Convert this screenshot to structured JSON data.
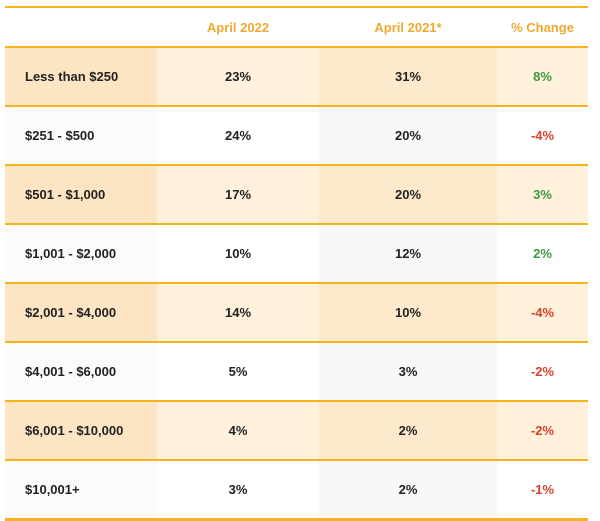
{
  "headers": [
    "",
    "April 2022",
    "April 2021*",
    "% Change"
  ],
  "rows": [
    {
      "range": "Less than $250",
      "apr2022": "23%",
      "apr2021": "31%",
      "change": "8%"
    },
    {
      "range": "$251 - $500",
      "apr2022": "24%",
      "apr2021": "20%",
      "change": "-4%"
    },
    {
      "range": "$501 - $1,000",
      "apr2022": "17%",
      "apr2021": "20%",
      "change": "3%"
    },
    {
      "range": "$1,001 - $2,000",
      "apr2022": "10%",
      "apr2021": "12%",
      "change": "2%"
    },
    {
      "range": "$2,001 - $4,000",
      "apr2022": "14%",
      "apr2021": "10%",
      "change": "-4%"
    },
    {
      "range": "$4,001 - $6,000",
      "apr2022": "5%",
      "apr2021": "3%",
      "change": "-2%"
    },
    {
      "range": "$6,001 - $10,000",
      "apr2022": "4%",
      "apr2021": "2%",
      "change": "-2%"
    },
    {
      "range": "$10,001+",
      "apr2022": "3%",
      "apr2021": "2%",
      "change": "-1%"
    }
  ],
  "colors": {
    "accent": "#f4b41a",
    "header_text": "#f0a830",
    "positive": "#3b9a3b",
    "negative": "#d8412a"
  }
}
